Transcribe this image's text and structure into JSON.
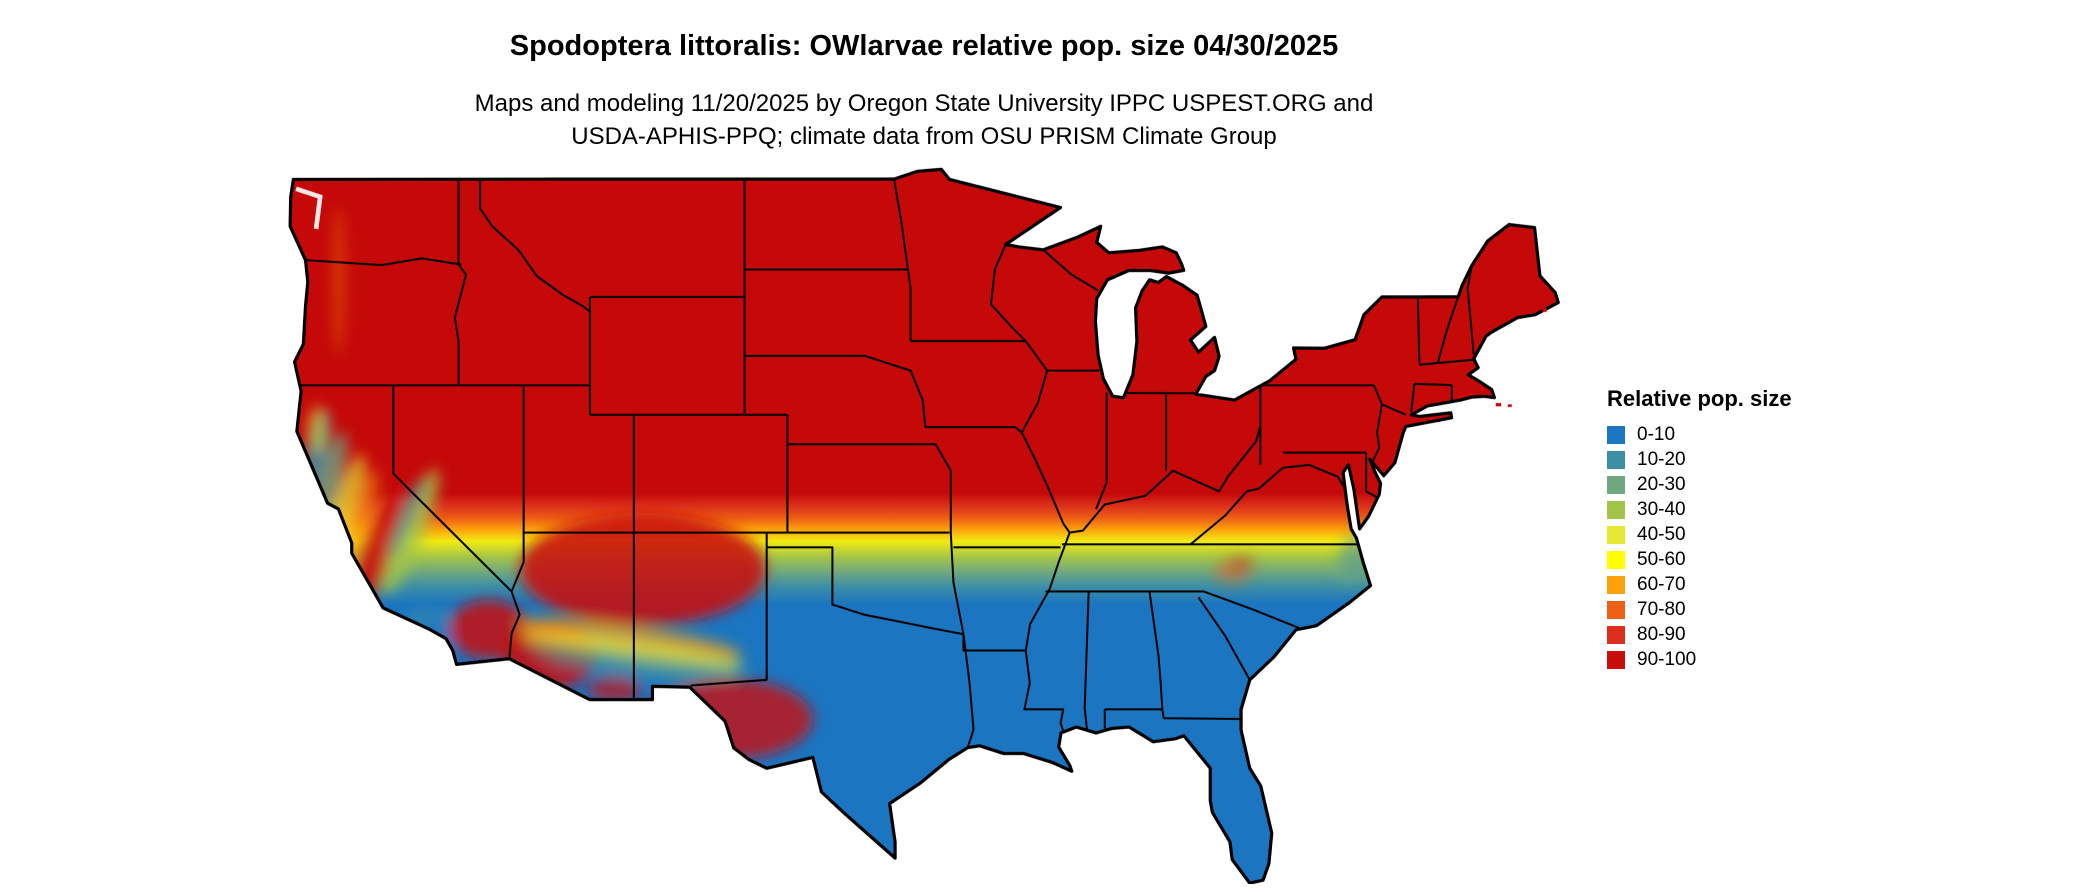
{
  "header": {
    "title": "Spodoptera littoralis: OWlarvae relative pop. size 04/30/2025",
    "subtitle_line1": "Maps and modeling 11/20/2025 by Oregon State University IPPC USPEST.ORG and",
    "subtitle_line2": "USDA-APHIS-PPQ; climate data from OSU PRISM Climate Group"
  },
  "map": {
    "region": "Contiguous United States",
    "kind": "raster choropleth of relative population size",
    "high_value_color": "#c80c0c",
    "low_value_color": "#1b75c0"
  },
  "legend": {
    "title": "Relative pop. size",
    "items": [
      {
        "label": "0-10",
        "color": "#1b75c0"
      },
      {
        "label": "10-20",
        "color": "#3d8fa6"
      },
      {
        "label": "20-30",
        "color": "#6fa87f"
      },
      {
        "label": "30-40",
        "color": "#a2c44a"
      },
      {
        "label": "40-50",
        "color": "#e6e832"
      },
      {
        "label": "50-60",
        "color": "#ffff00"
      },
      {
        "label": "60-70",
        "color": "#fca00c"
      },
      {
        "label": "70-80",
        "color": "#ed5f14"
      },
      {
        "label": "80-90",
        "color": "#dc2f1b"
      },
      {
        "label": "90-100",
        "color": "#c80c0c"
      }
    ]
  }
}
